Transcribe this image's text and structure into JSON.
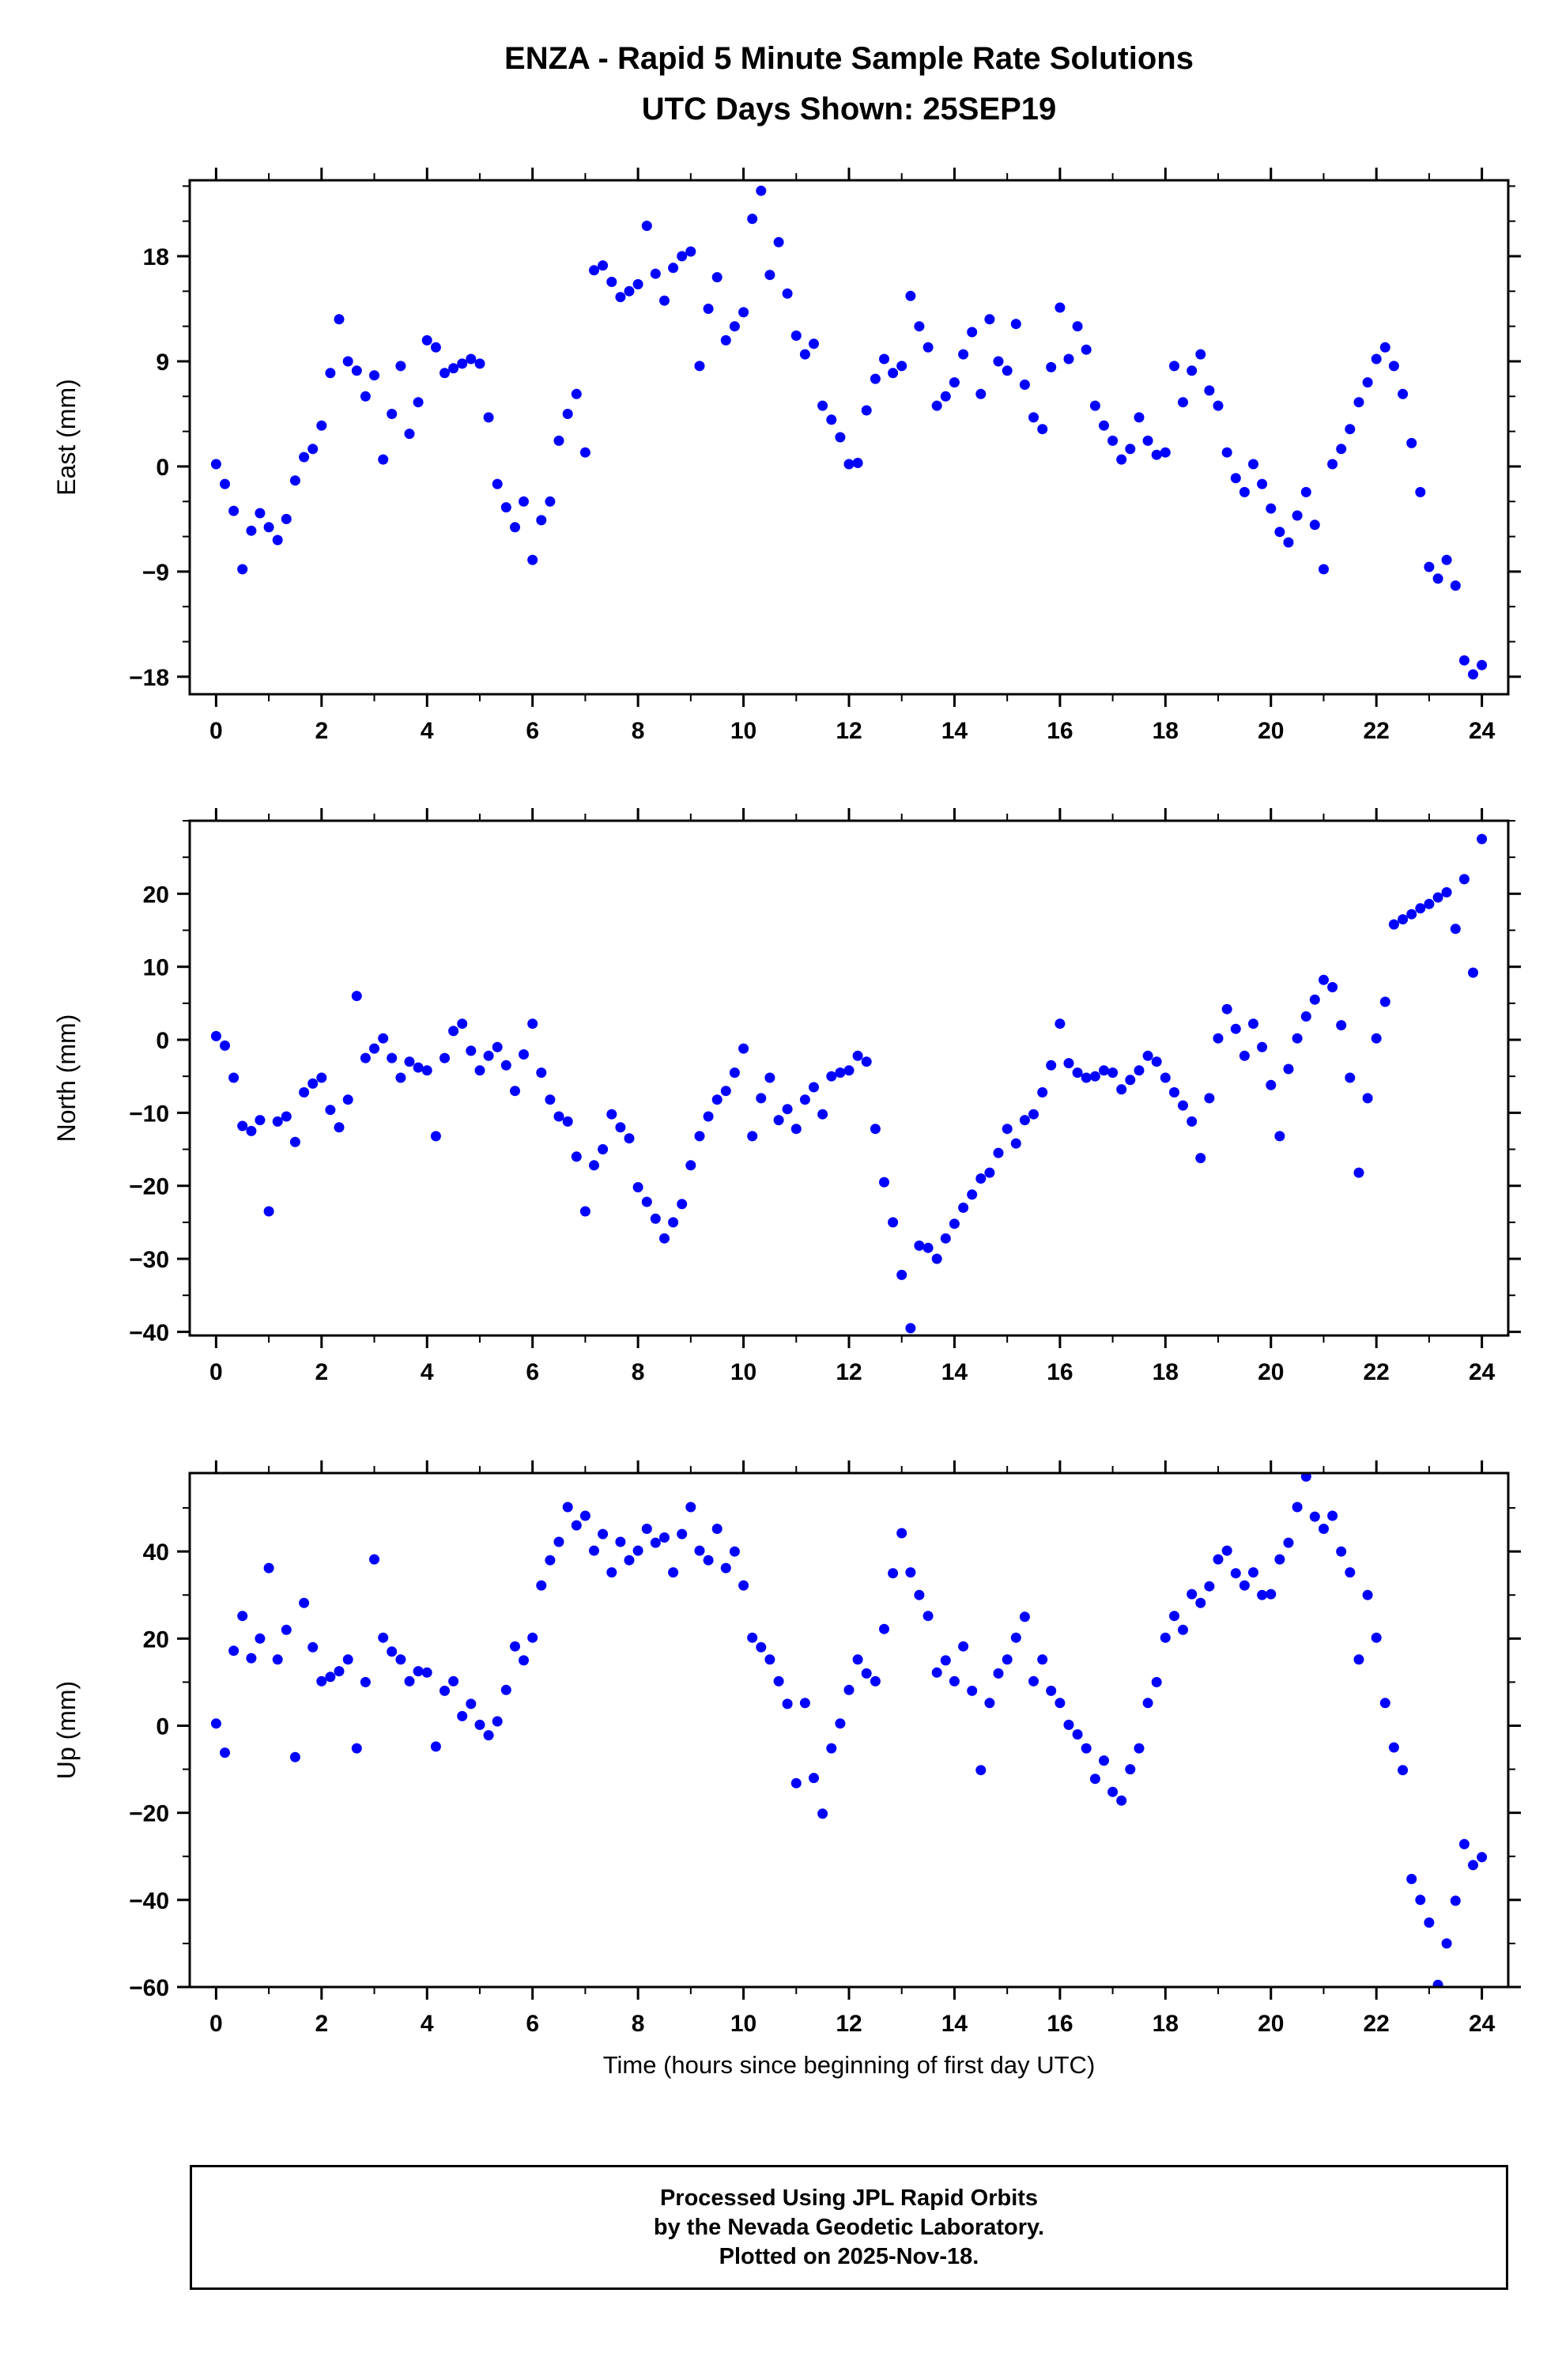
{
  "title": {
    "line1": "ENZA - Rapid 5 Minute Sample Rate Solutions",
    "line2": "UTC Days Shown:  25SEP19"
  },
  "footer": {
    "line1": "Processed Using JPL Rapid Orbits",
    "line2": "by the Nevada Geodetic Laboratory.",
    "line3": "Plotted on 2025-Nov-18."
  },
  "chart_data": {
    "type": "scatter",
    "title": "ENZA - Rapid 5 Minute Sample Rate Solutions",
    "subtitle": "UTC Days Shown:  25SEP19",
    "xlabel": "Time (hours since beginning of first day UTC)",
    "marker_color": "#0000ff",
    "xlim": [
      -0.5,
      24.5
    ],
    "x_ticks": [
      0,
      2,
      4,
      6,
      8,
      10,
      12,
      14,
      16,
      18,
      20,
      22,
      24
    ],
    "x_minor_step": 1,
    "x": [
      0,
      0.167,
      0.333,
      0.5,
      0.667,
      0.833,
      1,
      1.167,
      1.333,
      1.5,
      1.667,
      1.833,
      2,
      2.167,
      2.333,
      2.5,
      2.667,
      2.833,
      3,
      3.167,
      3.333,
      3.5,
      3.667,
      3.833,
      4,
      4.167,
      4.333,
      4.5,
      4.667,
      4.833,
      5,
      5.167,
      5.333,
      5.5,
      5.667,
      5.833,
      6,
      6.167,
      6.333,
      6.5,
      6.667,
      6.833,
      7,
      7.167,
      7.333,
      7.5,
      7.667,
      7.833,
      8,
      8.167,
      8.333,
      8.5,
      8.667,
      8.833,
      9,
      9.167,
      9.333,
      9.5,
      9.667,
      9.833,
      10,
      10.167,
      10.333,
      10.5,
      10.667,
      10.833,
      11,
      11.167,
      11.333,
      11.5,
      11.667,
      11.833,
      12,
      12.167,
      12.333,
      12.5,
      12.667,
      12.833,
      13,
      13.167,
      13.333,
      13.5,
      13.667,
      13.833,
      14,
      14.167,
      14.333,
      14.5,
      14.667,
      14.833,
      15,
      15.167,
      15.333,
      15.5,
      15.667,
      15.833,
      16,
      16.167,
      16.333,
      16.5,
      16.667,
      16.833,
      17,
      17.167,
      17.333,
      17.5,
      17.667,
      17.833,
      18,
      18.167,
      18.333,
      18.5,
      18.667,
      18.833,
      19,
      19.167,
      19.333,
      19.5,
      19.667,
      19.833,
      20,
      20.167,
      20.333,
      20.5,
      20.667,
      20.833,
      21,
      21.167,
      21.333,
      21.5,
      21.667,
      21.833,
      22,
      22.167,
      22.333,
      22.5,
      22.667,
      22.833,
      23,
      23.167,
      23.333,
      23.5,
      23.667,
      23.833,
      24
    ],
    "series": [
      {
        "name": "East",
        "ylabel": "East (mm)",
        "ylim": [
          -19.5,
          24.5
        ],
        "yticks": [
          -18,
          -9,
          0,
          9,
          18
        ],
        "y_minor_step": 3,
        "y": [
          0.2,
          -1.5,
          -3.8,
          -8.8,
          -5.5,
          -4.0,
          -5.2,
          -6.3,
          -4.5,
          -1.2,
          0.8,
          1.5,
          3.5,
          8.0,
          12.6,
          9.0,
          8.2,
          6.0,
          7.8,
          0.6,
          4.5,
          8.6,
          2.8,
          5.5,
          10.8,
          10.2,
          8.0,
          8.4,
          8.8,
          9.2,
          8.8,
          4.2,
          -1.5,
          -3.5,
          -5.2,
          -3.0,
          -8.0,
          -4.6,
          -3.0,
          2.2,
          4.5,
          6.2,
          1.2,
          16.8,
          17.2,
          15.8,
          14.5,
          15.0,
          15.6,
          20.6,
          16.5,
          14.2,
          17.0,
          18.0,
          18.4,
          8.6,
          13.5,
          16.2,
          10.8,
          12.0,
          13.2,
          21.2,
          23.6,
          16.4,
          19.2,
          14.8,
          11.2,
          9.6,
          10.5,
          5.2,
          4.0,
          2.5,
          0.2,
          0.3,
          4.8,
          7.5,
          9.2,
          8.0,
          8.6,
          14.6,
          12.0,
          10.2,
          5.2,
          6.0,
          7.2,
          9.6,
          11.5,
          6.2,
          12.6,
          9.0,
          8.2,
          12.2,
          7.0,
          4.2,
          3.2,
          8.5,
          13.6,
          9.2,
          12.0,
          10.0,
          5.2,
          3.5,
          2.2,
          0.6,
          1.5,
          4.2,
          2.2,
          1.0,
          1.2,
          8.6,
          5.5,
          8.2,
          9.6,
          6.5,
          5.2,
          1.2,
          -1.0,
          -2.2,
          0.2,
          -1.5,
          -3.6,
          -5.6,
          -6.5,
          -4.2,
          -2.2,
          -5.0,
          -8.8,
          0.2,
          1.5,
          3.2,
          5.5,
          7.2,
          9.2,
          10.2,
          8.6,
          6.2,
          2.0,
          -2.2,
          -8.6,
          -9.6,
          -8.0,
          -10.2,
          -16.6,
          -17.8,
          -17.0
        ]
      },
      {
        "name": "North",
        "ylabel": "North (mm)",
        "ylim": [
          -40.5,
          30
        ],
        "yticks": [
          -40,
          -30,
          -20,
          -10,
          0,
          10,
          20
        ],
        "y_minor_step": 5,
        "y": [
          0.5,
          -0.8,
          -5.2,
          -11.8,
          -12.5,
          -11.0,
          -23.5,
          -11.2,
          -10.5,
          -14.0,
          -7.2,
          -6.0,
          -5.2,
          -9.6,
          -12.0,
          -8.2,
          6.0,
          -2.5,
          -1.2,
          0.2,
          -2.5,
          -5.2,
          -3.0,
          -3.8,
          -4.2,
          -13.2,
          -2.5,
          1.2,
          2.2,
          -1.5,
          -4.2,
          -2.2,
          -1.0,
          -3.5,
          -7.0,
          -2.0,
          2.2,
          -4.5,
          -8.2,
          -10.5,
          -11.2,
          -16.0,
          -23.5,
          -17.2,
          -15.0,
          -10.2,
          -12.0,
          -13.5,
          -20.2,
          -22.2,
          -24.5,
          -27.2,
          -25.0,
          -22.5,
          -17.2,
          -13.2,
          -10.5,
          -8.2,
          -7.0,
          -4.5,
          -1.2,
          -13.2,
          -8.0,
          -5.2,
          -11.0,
          -9.5,
          -12.2,
          -8.2,
          -6.5,
          -10.2,
          -5.0,
          -4.5,
          -4.2,
          -2.2,
          -3.0,
          -12.2,
          -19.5,
          -25.0,
          -32.2,
          -39.5,
          -28.2,
          -28.5,
          -30.0,
          -27.2,
          -25.2,
          -23.0,
          -21.2,
          -19.0,
          -18.2,
          -15.5,
          -12.2,
          -14.2,
          -11.0,
          -10.2,
          -7.2,
          -3.5,
          2.2,
          -3.2,
          -4.5,
          -5.2,
          -5.0,
          -4.2,
          -4.5,
          -6.8,
          -5.5,
          -4.2,
          -2.2,
          -3.0,
          -5.2,
          -7.2,
          -9.0,
          -11.2,
          -16.2,
          -8.0,
          0.2,
          4.2,
          1.5,
          -2.2,
          2.2,
          -1.0,
          -6.2,
          -13.2,
          -4.0,
          0.2,
          3.2,
          5.5,
          8.2,
          7.2,
          2.0,
          -5.2,
          -18.2,
          -8.0,
          0.2,
          5.2,
          15.8,
          16.5,
          17.2,
          18.0,
          18.6,
          19.5,
          20.2,
          15.2,
          22.0,
          9.2,
          27.5
        ]
      },
      {
        "name": "Up",
        "ylabel": "Up (mm)",
        "ylim": [
          -60,
          58
        ],
        "yticks": [
          -60,
          -40,
          -20,
          0,
          20,
          40
        ],
        "y_minor_step": 10,
        "y": [
          0.5,
          -6.2,
          17.2,
          25.2,
          15.5,
          20.0,
          36.2,
          15.2,
          22.0,
          -7.2,
          28.2,
          18.0,
          10.2,
          11.2,
          12.5,
          15.2,
          -5.2,
          10.0,
          38.2,
          20.2,
          17.0,
          15.2,
          10.2,
          12.5,
          12.2,
          -4.8,
          8.0,
          10.2,
          2.2,
          5.0,
          0.2,
          -2.2,
          1.0,
          8.2,
          18.2,
          15.0,
          20.2,
          32.2,
          38.0,
          42.2,
          50.2,
          46.0,
          48.2,
          40.2,
          44.0,
          35.2,
          42.2,
          38.0,
          40.2,
          45.2,
          42.0,
          43.2,
          35.2,
          44.0,
          50.2,
          40.2,
          38.0,
          45.2,
          36.2,
          40.0,
          32.2,
          20.2,
          18.0,
          15.2,
          10.2,
          5.0,
          -13.2,
          5.2,
          -12.0,
          -20.2,
          -5.2,
          0.5,
          8.2,
          15.2,
          12.0,
          10.2,
          22.2,
          35.0,
          44.2,
          35.2,
          30.0,
          25.2,
          12.2,
          15.0,
          10.2,
          18.2,
          8.0,
          -10.2,
          5.2,
          12.0,
          15.2,
          20.2,
          25.0,
          10.2,
          15.2,
          8.0,
          5.2,
          0.2,
          -2.0,
          -5.2,
          -12.2,
          -8.0,
          -15.2,
          -17.2,
          -10.0,
          -5.2,
          5.2,
          10.0,
          20.2,
          25.2,
          22.0,
          30.2,
          28.2,
          32.0,
          38.2,
          40.2,
          35.0,
          32.2,
          35.2,
          30.0,
          30.2,
          38.2,
          42.0,
          50.2,
          57.2,
          48.0,
          45.2,
          48.2,
          40.0,
          35.2,
          15.2,
          30.0,
          20.2,
          5.2,
          -5.0,
          -10.2,
          -35.2,
          -40.0,
          -45.2,
          -59.5,
          -50.0,
          -40.2,
          -27.2,
          -32.0,
          -30.2
        ]
      }
    ]
  }
}
